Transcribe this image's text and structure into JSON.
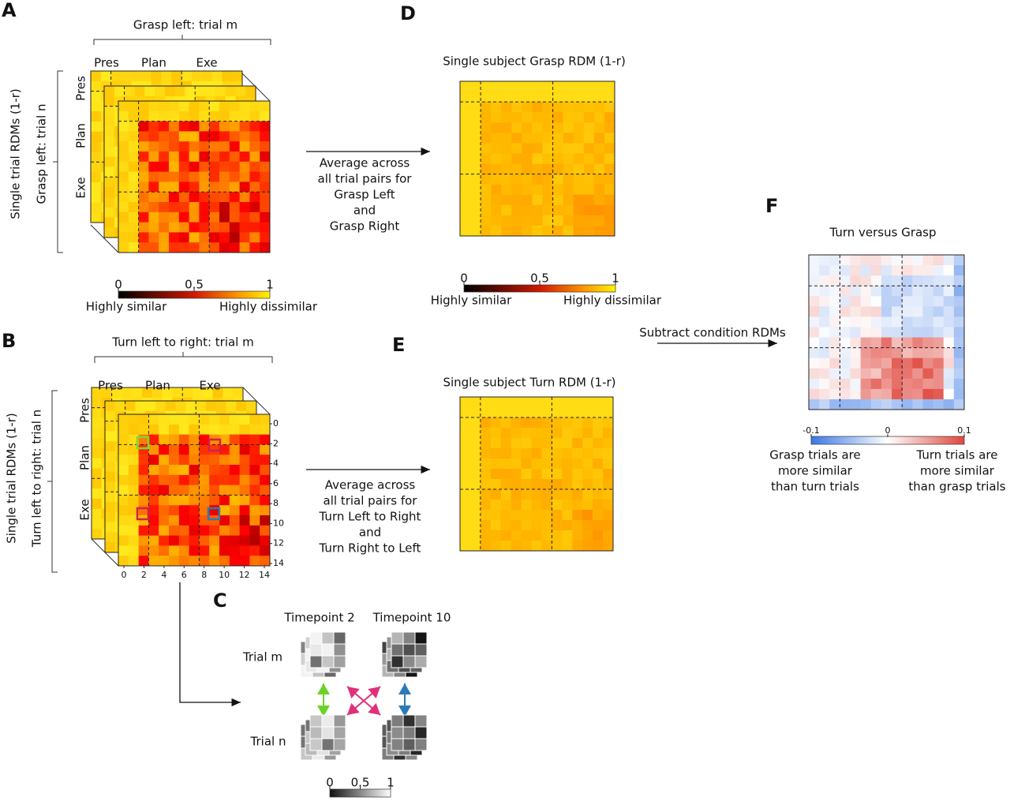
{
  "panel_a": {
    "letter": "A",
    "title": "Grasp left: trial m",
    "columns": [
      "Pres",
      "Plan",
      "Exe"
    ],
    "rows": [
      "Pres",
      "Plan",
      "Exe"
    ],
    "ylabel": [
      "Single trial RDMs (1-r)",
      "Grasp left: trial n"
    ],
    "colorbar": {
      "ticks": [
        0,
        0.5,
        1
      ],
      "labels": [
        "Highly similar",
        "Highly dissimilar"
      ]
    }
  },
  "arrow_d_text": [
    "Average across",
    "all trial pairs for",
    "Grasp Left",
    "and",
    "Grasp Right"
  ],
  "panel_b": {
    "letter": "B",
    "title": "Turn left to right: trial m",
    "columns": [
      "Pres",
      "Plan",
      "Exe"
    ],
    "rows": [
      "Pres",
      "Plan",
      "Exe"
    ],
    "ylabel": [
      "Single trial RDMs (1-r)",
      "Turn left to right: trial n"
    ],
    "ticks": [
      0,
      2,
      4,
      6,
      8,
      10,
      12,
      14
    ]
  },
  "arrow_e_text": [
    "Average across",
    "all trial pairs for",
    "Turn Left to Right",
    "and",
    "Turn Right to Left"
  ],
  "panel_c": {
    "letter": "C",
    "columns": [
      "Timepoint 2",
      "Timepoint 10"
    ],
    "rows": [
      "Trial m",
      "Trial n"
    ],
    "colorbar": {
      "ticks": [
        0,
        0.5,
        1
      ]
    }
  },
  "panel_d": {
    "letter": "D",
    "title": "Single subject Grasp RDM (1-r)",
    "colorbar": {
      "ticks": [
        0,
        0.5,
        1
      ],
      "labels": [
        "Highly similar",
        "Highly dissimilar"
      ]
    }
  },
  "panel_e": {
    "letter": "E",
    "title": "Single subject Turn RDM (1-r)"
  },
  "arrow_f_text": "Subtract condition RDMs",
  "panel_f": {
    "letter": "F",
    "title": "Turn versus Grasp",
    "colorbar": {
      "ticks": [
        -0.1,
        0,
        0.1
      ],
      "labels": [
        [
          "Grasp trials are",
          "more similar",
          "than turn trials"
        ],
        [
          "Turn trials are",
          "more similar",
          "than grasp trials"
        ]
      ]
    }
  }
}
